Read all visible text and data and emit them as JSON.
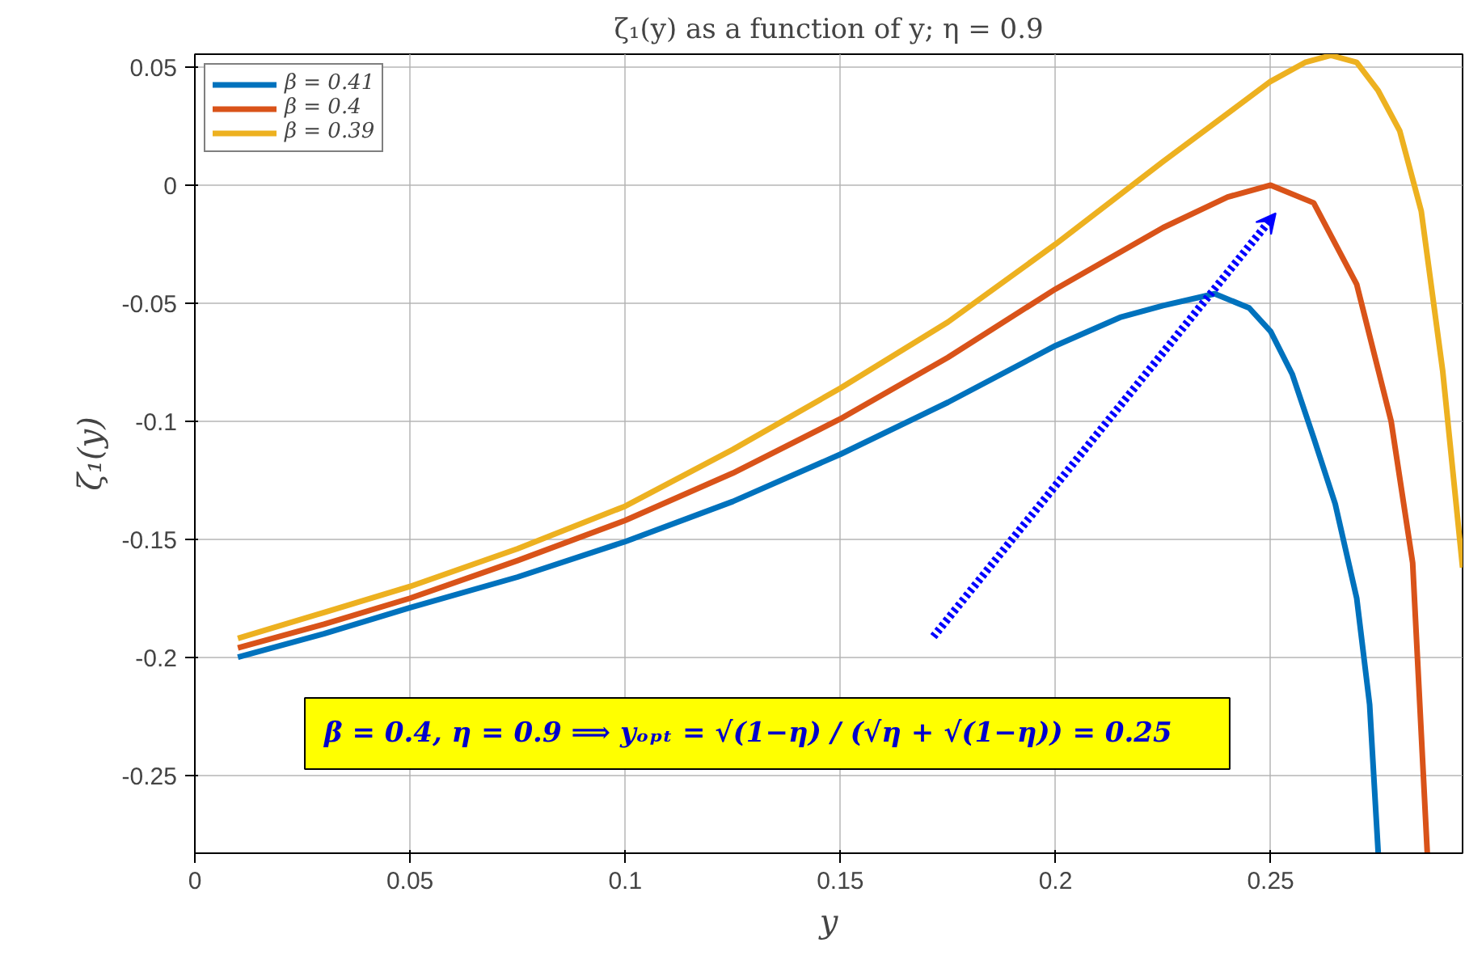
{
  "chart_data": {
    "type": "line",
    "title": "ζ₁(y) as a function of y; η = 0.9",
    "xlabel": "y",
    "ylabel": "ζ₁(y)",
    "xlim": [
      0,
      0.2946
    ],
    "ylim": [
      -0.283,
      0.0555
    ],
    "xticks": [
      0,
      0.05,
      0.1,
      0.15,
      0.2,
      0.25
    ],
    "yticks": [
      -0.25,
      -0.2,
      -0.15,
      -0.1,
      -0.05,
      0,
      0.05
    ],
    "grid": true,
    "legend": "top left",
    "marker": "none",
    "line_style": "solid",
    "annotations": [
      "β = 0.4, η = 0.9   ⟹   yₒₚₜ = √(1−η) / (√η + √(1−η)) = 0.25"
    ],
    "series": [
      {
        "name": "β = 0.41",
        "color": "#0072bd",
        "x": [
          0.01,
          0.03,
          0.05,
          0.075,
          0.1,
          0.125,
          0.15,
          0.175,
          0.2,
          0.215,
          0.225,
          0.237,
          0.245,
          0.25,
          0.255,
          0.26,
          0.265,
          0.27,
          0.273,
          0.275
        ],
        "values": [
          -0.2,
          -0.19,
          -0.179,
          -0.166,
          -0.151,
          -0.134,
          -0.114,
          -0.092,
          -0.068,
          -0.056,
          -0.051,
          -0.046,
          -0.052,
          -0.062,
          -0.08,
          -0.107,
          -0.135,
          -0.175,
          -0.22,
          -0.283
        ]
      },
      {
        "name": "β = 0.4",
        "color": "#d95319",
        "x": [
          0.01,
          0.03,
          0.05,
          0.075,
          0.1,
          0.125,
          0.15,
          0.175,
          0.2,
          0.225,
          0.24,
          0.25,
          0.26,
          0.27,
          0.278,
          0.283,
          0.2864
        ],
        "values": [
          -0.196,
          -0.186,
          -0.175,
          -0.159,
          -0.142,
          -0.122,
          -0.099,
          -0.073,
          -0.044,
          -0.018,
          -0.005,
          0,
          -0.0075,
          -0.042,
          -0.1,
          -0.16,
          -0.283
        ]
      },
      {
        "name": "β = 0.39",
        "color": "#edb120",
        "x": [
          0.01,
          0.03,
          0.05,
          0.075,
          0.1,
          0.125,
          0.15,
          0.175,
          0.2,
          0.225,
          0.25,
          0.258,
          0.264,
          0.27,
          0.275,
          0.28,
          0.285,
          0.29,
          0.2946
        ],
        "values": [
          -0.192,
          -0.181,
          -0.17,
          -0.154,
          -0.136,
          -0.112,
          -0.086,
          -0.058,
          -0.025,
          0.01,
          0.044,
          0.052,
          0.055,
          0.052,
          0.04,
          0.023,
          -0.011,
          -0.079,
          -0.162
        ]
      }
    ]
  }
}
